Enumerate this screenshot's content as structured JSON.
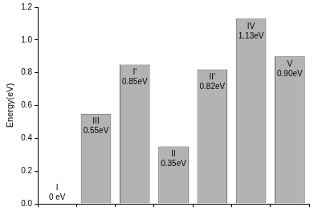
{
  "chart_data": {
    "type": "bar",
    "y_label": "Energy(eV)",
    "categories": [
      "I",
      "III",
      "I'",
      "II",
      "II'",
      "IV",
      "V"
    ],
    "values": [
      0,
      0.55,
      0.85,
      0.35,
      0.82,
      1.13,
      0.9
    ],
    "value_labels": [
      "0 eV",
      "0.55eV",
      "0.85eV",
      "0.35eV",
      "0.82eV",
      "1.13eV",
      "0.90eV"
    ],
    "data_labels": true,
    "color": "#b3b3b3",
    "ylim": [
      0,
      1.2
    ],
    "yticks": [
      {
        "value": 0,
        "label": "0.0"
      },
      {
        "value": 0.2,
        "label": "0.2"
      },
      {
        "value": 0.4,
        "label": "0.4"
      },
      {
        "value": 0.6,
        "label": "0.6"
      },
      {
        "value": 0.8,
        "label": "0.8"
      },
      {
        "value": 1.0,
        "label": "1.0"
      },
      {
        "value": 1.2,
        "label": "1.2"
      }
    ],
    "grid": false,
    "tick_labels": "y"
  }
}
